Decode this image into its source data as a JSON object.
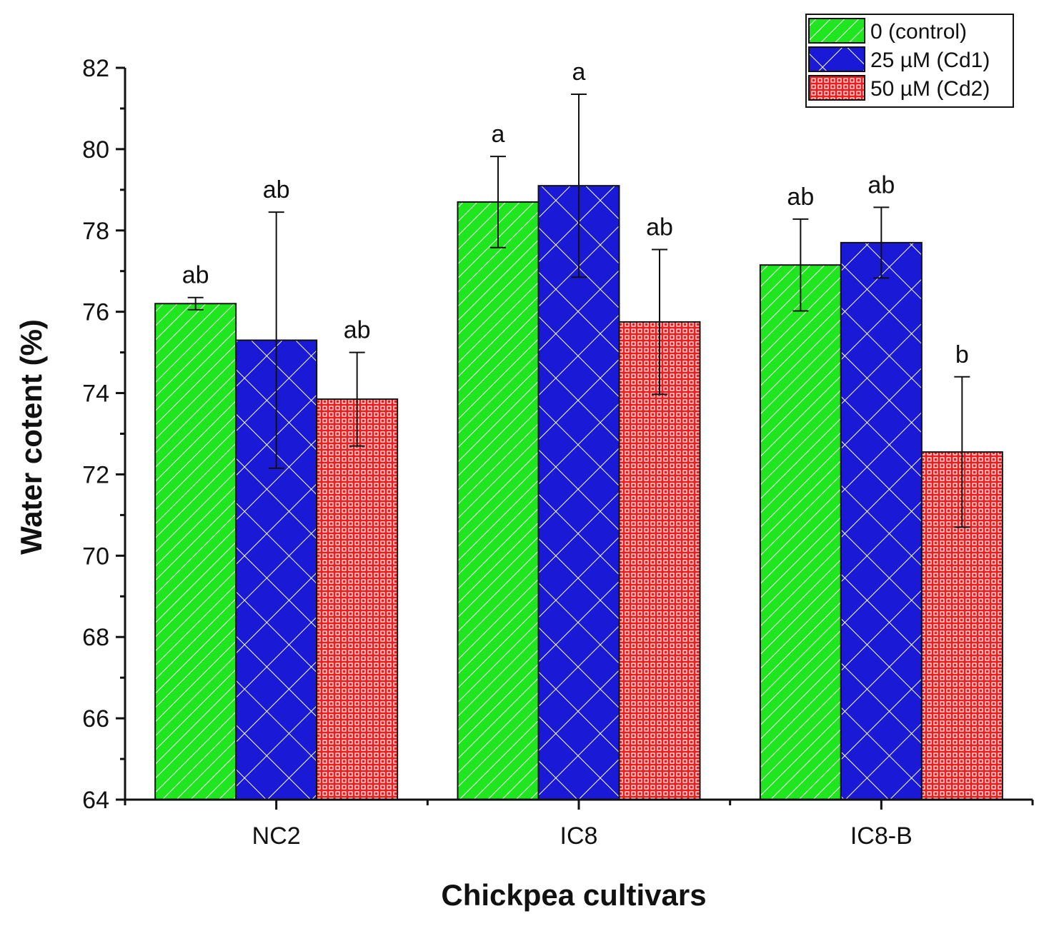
{
  "chart_data": {
    "type": "bar",
    "xlabel": "Chickpea cultivars",
    "ylabel": "Water cotent (%)",
    "categories": [
      "NC2",
      "IC8",
      "IC8-B"
    ],
    "ylim": [
      64,
      82
    ],
    "yticks": [
      64,
      66,
      68,
      70,
      72,
      74,
      76,
      78,
      80,
      82
    ],
    "legend_position": "top-right",
    "series": [
      {
        "name": "0 (control)",
        "color": "#1fe61f",
        "pattern": "diagonal-lines",
        "values": [
          76.2,
          78.7,
          77.15
        ],
        "errors": [
          0.15,
          1.12,
          1.13
        ],
        "labels": [
          "ab",
          "a",
          "ab"
        ]
      },
      {
        "name": "25 µM (Cd1)",
        "color": "#1a1ad6",
        "pattern": "crosshatch",
        "values": [
          75.3,
          79.1,
          77.7
        ],
        "errors": [
          3.15,
          2.25,
          0.87
        ],
        "labels": [
          "ab",
          "a",
          "ab"
        ]
      },
      {
        "name": "50 µM (Cd2)",
        "color": "#ee1c1c",
        "pattern": "grid",
        "values": [
          73.85,
          75.75,
          72.55
        ],
        "errors": [
          1.15,
          1.78,
          1.85
        ],
        "labels": [
          "ab",
          "ab",
          "b"
        ]
      }
    ]
  }
}
